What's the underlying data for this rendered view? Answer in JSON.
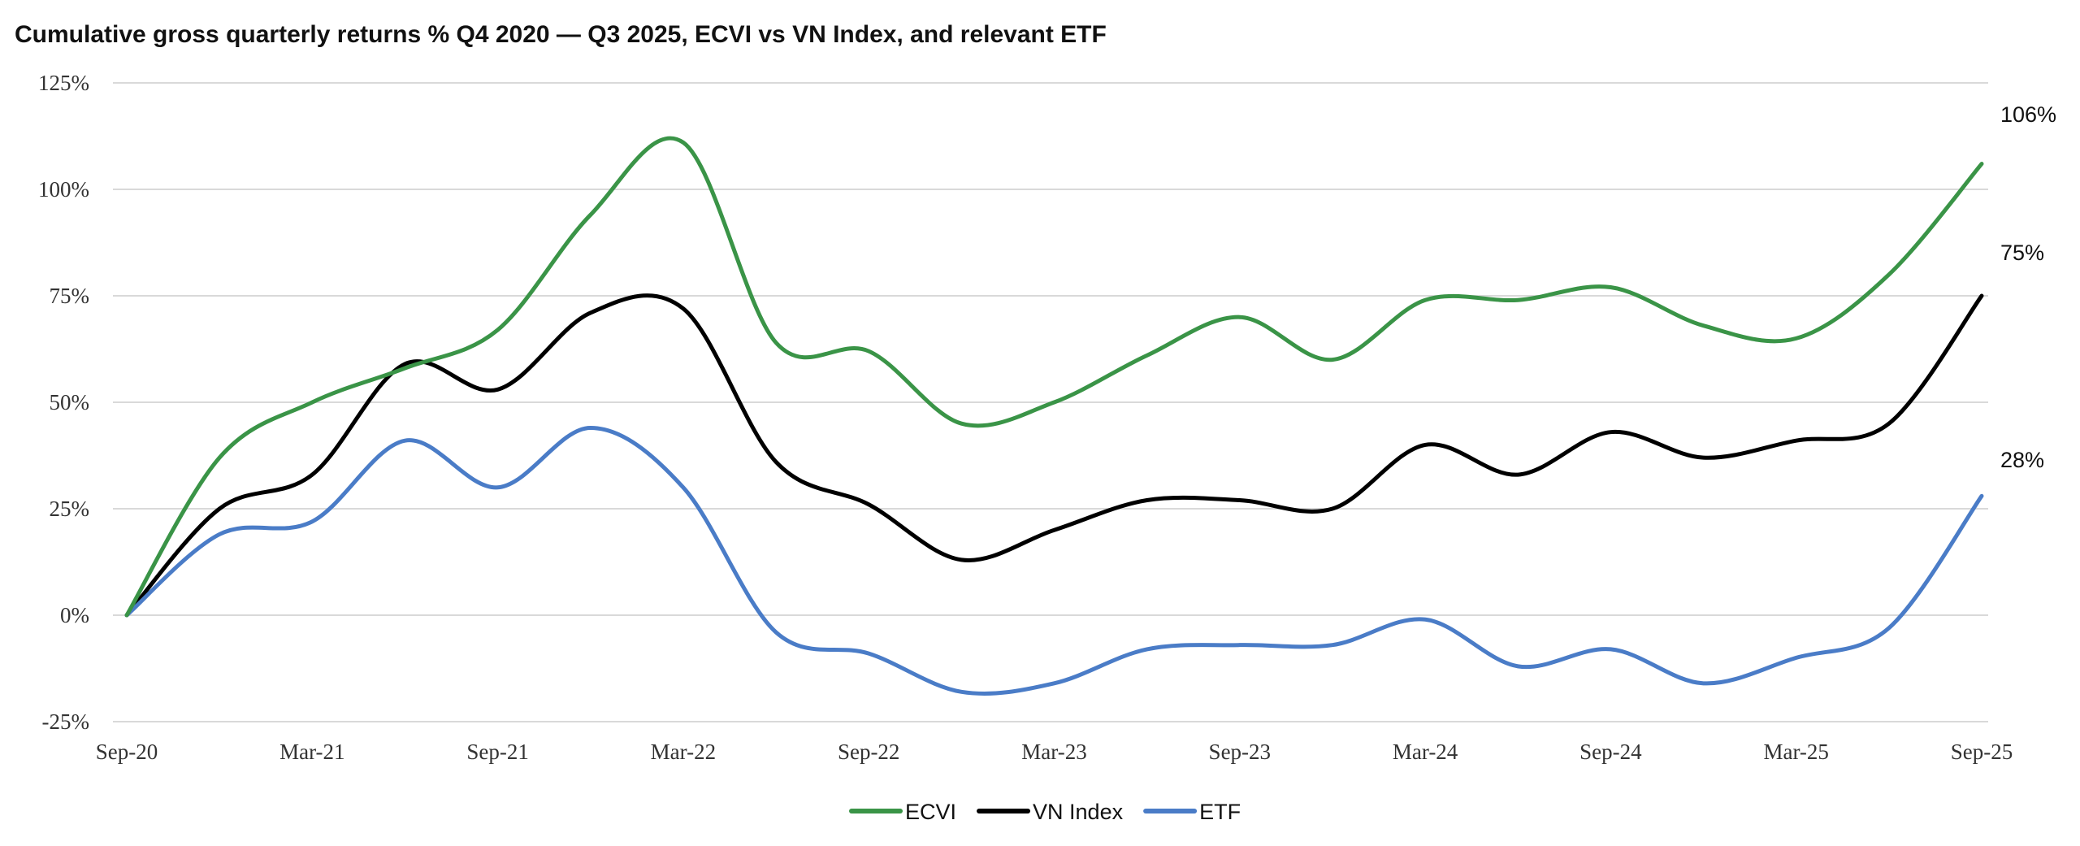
{
  "chart_data": {
    "type": "line",
    "title": "Cumulative gross quarterly returns % Q4 2020 — Q3 2025, ECVI vs VN Index, and relevant ETF",
    "xlabel": "",
    "ylabel": "",
    "ylim": [
      -25,
      125
    ],
    "yticks": [
      125,
      100,
      75,
      50,
      25,
      0,
      -25
    ],
    "ytick_labels": [
      "125%",
      "100%",
      "75%",
      "50%",
      "25%",
      "0%",
      "-25%"
    ],
    "x": [
      "Sep-20",
      "Dec-20",
      "Mar-21",
      "Jun-21",
      "Sep-21",
      "Dec-21",
      "Mar-22",
      "Jun-22",
      "Sep-22",
      "Dec-22",
      "Mar-23",
      "Jun-23",
      "Sep-23",
      "Dec-23",
      "Mar-24",
      "Jun-24",
      "Sep-24",
      "Dec-24",
      "Mar-25",
      "Jun-25",
      "Sep-25"
    ],
    "xtick_labels": [
      "Sep-20",
      "Mar-21",
      "Sep-21",
      "Mar-22",
      "Sep-22",
      "Mar-23",
      "Sep-23",
      "Mar-24",
      "Sep-24",
      "Mar-25",
      "Sep-25"
    ],
    "grid": true,
    "legend_position": "bottom",
    "series": [
      {
        "name": "ECVI",
        "color": "#3a9447",
        "end_label": "106%",
        "values": [
          0,
          37,
          50,
          58,
          67,
          94,
          111,
          64,
          62,
          45,
          50,
          61,
          70,
          60,
          74,
          74,
          77,
          68,
          65,
          80,
          106
        ]
      },
      {
        "name": "VN Index",
        "color": "#000000",
        "end_label": "75%",
        "values": [
          0,
          25,
          33,
          59,
          53,
          71,
          72,
          36,
          26,
          13,
          20,
          27,
          27,
          25,
          40,
          33,
          43,
          37,
          41,
          45,
          75
        ]
      },
      {
        "name": "ETF",
        "color": "#4a7cc7",
        "end_label": "28%",
        "values": [
          0,
          19,
          22,
          41,
          30,
          44,
          30,
          -4,
          -9,
          -18,
          -16,
          -8,
          -7,
          -7,
          -1,
          -12,
          -8,
          -16,
          -10,
          -3,
          28
        ]
      }
    ]
  }
}
